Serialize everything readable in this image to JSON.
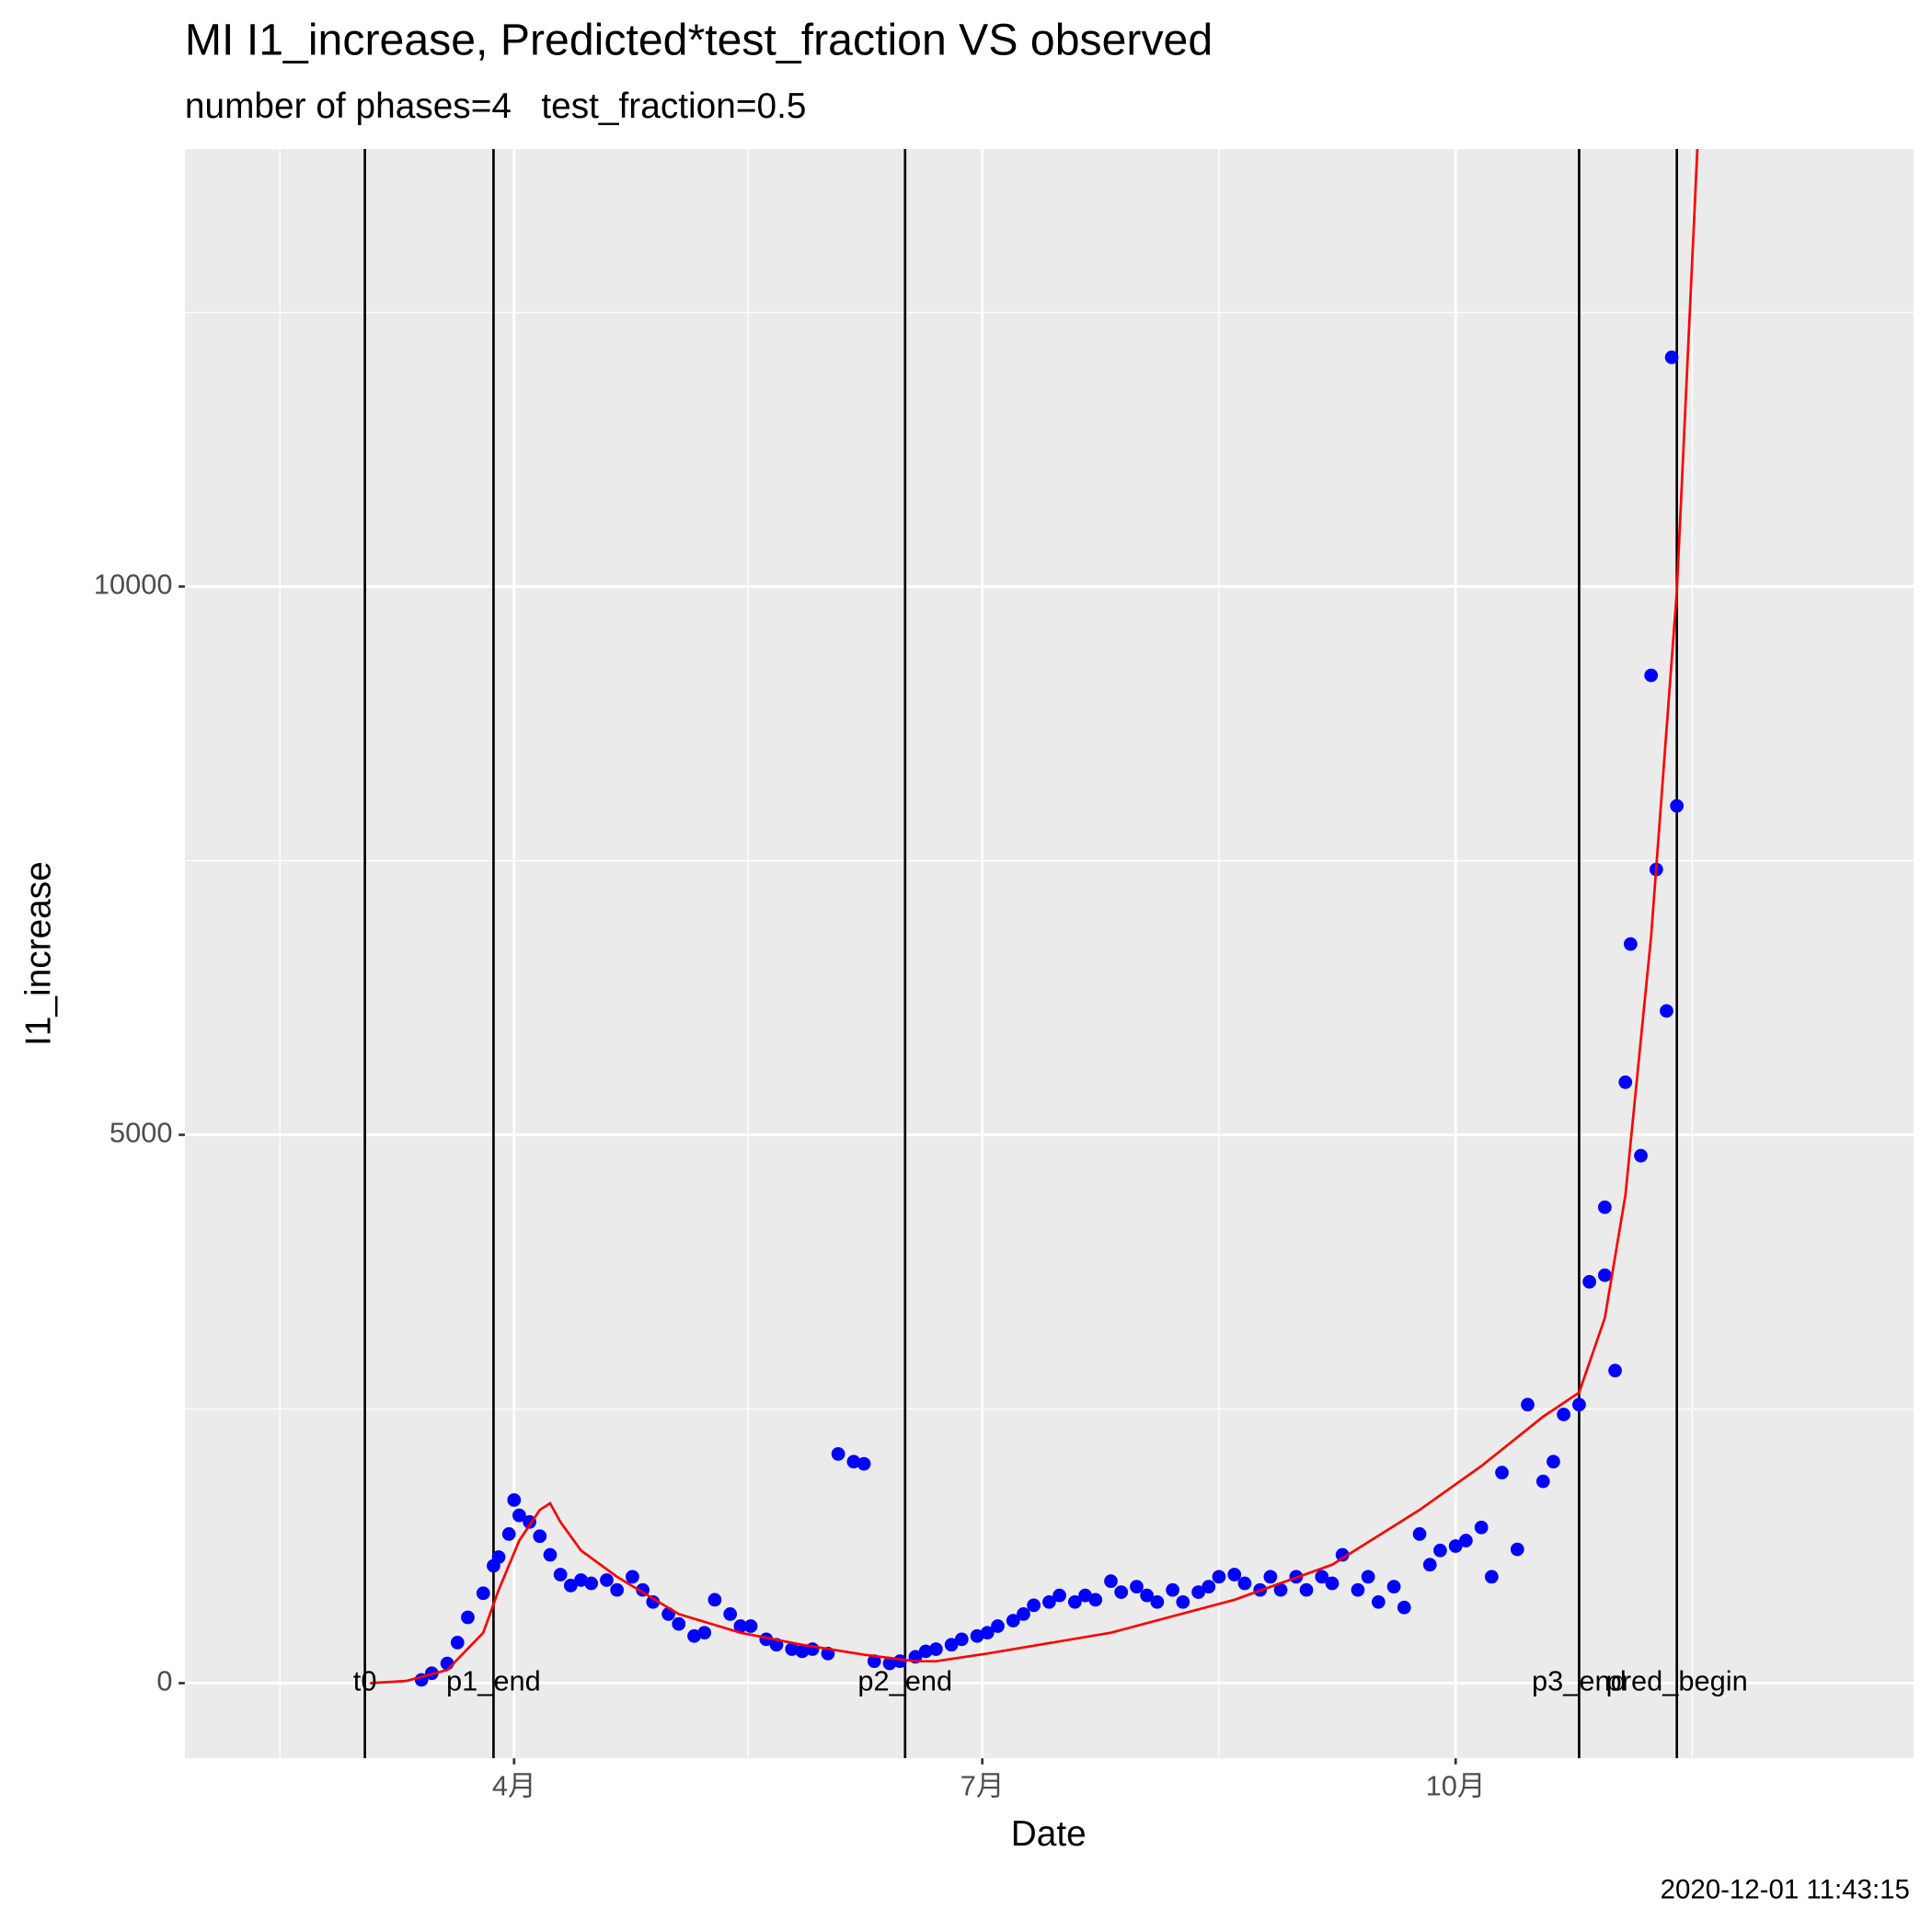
{
  "chart_data": {
    "type": "scatter",
    "title": "MI I1_increase, Predicted*test_fraction VS observed",
    "subtitle": "number of phases=4   test_fraction=0.5",
    "x_label": "Date",
    "y_label": "I1_increase",
    "xlim": [
      28,
      364
    ],
    "ylim": [
      -685,
      13989
    ],
    "xticks": [
      {
        "value": 92,
        "label": "4月"
      },
      {
        "value": 183,
        "label": "7月"
      },
      {
        "value": 275,
        "label": "10月"
      }
    ],
    "yticks": [
      0,
      5000,
      10000
    ],
    "grid": true,
    "series": [
      {
        "style": "points",
        "color": "#0000ff",
        "x": [
          74,
          76,
          79,
          81,
          83,
          86,
          88,
          89,
          91,
          92,
          93,
          95,
          97,
          99,
          101,
          103,
          105,
          107,
          110,
          112,
          115,
          117,
          119,
          122,
          124,
          127,
          129,
          131,
          134,
          136,
          138,
          141,
          143,
          146,
          148,
          150,
          153,
          155,
          158,
          160,
          162,
          165,
          167,
          170,
          172,
          174,
          177,
          179,
          182,
          184,
          186,
          189,
          191,
          193,
          196,
          198,
          201,
          203,
          205,
          208,
          210,
          213,
          215,
          217,
          220,
          222,
          225,
          227,
          229,
          232,
          234,
          237,
          239,
          241,
          244,
          246,
          249,
          251,
          253,
          256,
          258,
          260,
          263,
          265,
          268,
          270,
          272,
          275,
          277,
          280,
          282,
          284,
          287,
          289,
          292,
          294,
          296,
          299,
          301,
          304,
          304,
          306,
          308,
          309,
          311,
          313,
          314,
          316,
          317,
          318
        ],
        "values": [
          30,
          90,
          180,
          370,
          600,
          820,
          1070,
          1150,
          1360,
          1670,
          1530,
          1470,
          1340,
          1170,
          990,
          890,
          940,
          910,
          940,
          850,
          970,
          850,
          740,
          630,
          540,
          430,
          460,
          760,
          630,
          520,
          520,
          400,
          350,
          310,
          290,
          310,
          270,
          2090,
          2020,
          2000,
          200,
          180,
          200,
          240,
          290,
          310,
          350,
          400,
          430,
          460,
          520,
          570,
          630,
          710,
          740,
          800,
          740,
          800,
          760,
          930,
          830,
          880,
          800,
          740,
          850,
          740,
          830,
          880,
          970,
          990,
          910,
          850,
          970,
          850,
          970,
          850,
          970,
          910,
          1170,
          850,
          970,
          740,
          880,
          690,
          1360,
          1080,
          1210,
          1250,
          1300,
          1420,
          970,
          1920,
          1220,
          2540,
          1840,
          2020,
          2450,
          2540,
          3660,
          3720,
          4340,
          2850,
          5480,
          6740,
          4810,
          9190,
          7420,
          6130,
          12090,
          8000
        ]
      },
      {
        "style": "line",
        "color": "#ff0000",
        "x": [
          64,
          71,
          79,
          86,
          89,
          93,
          97,
          99,
          101,
          105,
          112,
          124,
          136,
          148,
          160,
          170,
          174,
          184,
          208,
          232,
          251,
          268,
          280,
          292,
          299,
          304,
          308,
          313,
          318,
          320,
          322
        ],
        "values": [
          0,
          20,
          120,
          460,
          850,
          1300,
          1580,
          1640,
          1470,
          1210,
          970,
          630,
          460,
          350,
          260,
          200,
          200,
          270,
          460,
          760,
          1080,
          1580,
          1980,
          2430,
          2650,
          3330,
          4450,
          6810,
          9960,
          11980,
          14000
        ]
      }
    ],
    "vlines": [
      {
        "x": 63,
        "label": "t0"
      },
      {
        "x": 88,
        "label": "p1_end"
      },
      {
        "x": 168,
        "label": "p2_end"
      },
      {
        "x": 299,
        "label": "p3_end"
      },
      {
        "x": 318,
        "label": "pred_begin"
      }
    ],
    "timestamp": "2020-12-01 11:43:15"
  }
}
